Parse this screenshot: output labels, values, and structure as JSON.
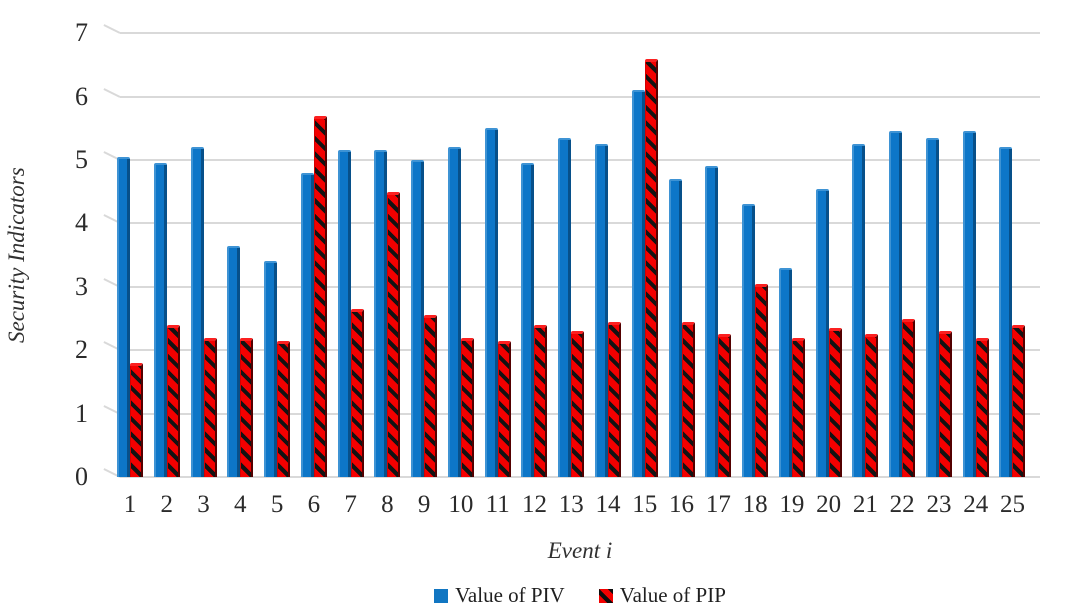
{
  "chart_data": {
    "type": "bar",
    "title": "",
    "xlabel": "Event i",
    "ylabel": "Security Indicators",
    "categories": [
      "1",
      "2",
      "3",
      "4",
      "5",
      "6",
      "7",
      "8",
      "9",
      "10",
      "11",
      "12",
      "13",
      "14",
      "15",
      "16",
      "17",
      "18",
      "19",
      "20",
      "21",
      "22",
      "23",
      "24",
      "25"
    ],
    "series": [
      {
        "name": "Value of PIV",
        "color": "#0d76c8",
        "pattern": "solid",
        "values": [
          5.05,
          4.95,
          5.2,
          3.65,
          3.4,
          4.8,
          5.15,
          5.15,
          5.0,
          5.2,
          5.5,
          4.95,
          5.35,
          5.25,
          6.1,
          4.7,
          4.9,
          4.3,
          3.3,
          4.55,
          5.25,
          5.45,
          5.35,
          5.45,
          5.2
        ]
      },
      {
        "name": "Value of PIP",
        "color": "#f30000",
        "pattern": "black-diagonal-hatch",
        "values": [
          1.8,
          2.4,
          2.2,
          2.2,
          2.15,
          5.7,
          2.65,
          4.5,
          2.55,
          2.2,
          2.15,
          2.4,
          2.3,
          2.45,
          6.6,
          2.45,
          2.25,
          3.05,
          2.2,
          2.35,
          2.25,
          2.5,
          2.3,
          2.2,
          2.4
        ]
      }
    ],
    "ylim": [
      0,
      7
    ],
    "yticks": [
      0,
      1,
      2,
      3,
      4,
      5,
      6,
      7
    ],
    "grid": true,
    "gridline_color": "#d9d9d9",
    "legend_position": "bottom"
  }
}
